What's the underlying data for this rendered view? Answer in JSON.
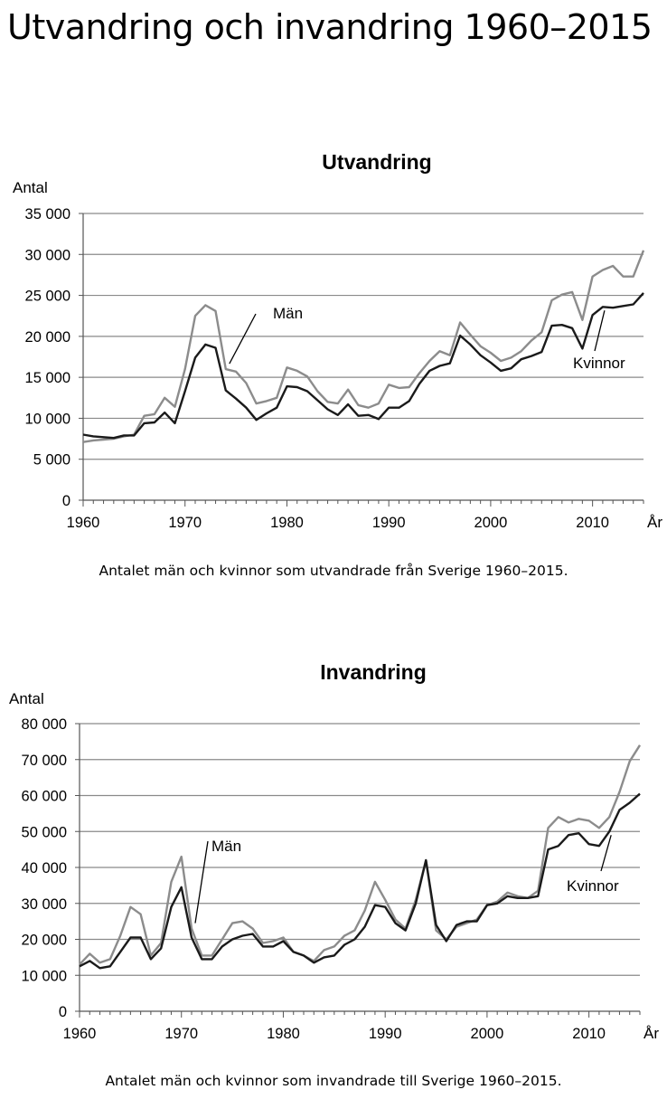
{
  "page": {
    "title": "Utvandring och invandring 1960–2015"
  },
  "colors": {
    "men": "#8c8c8c",
    "women": "#1a1a1a",
    "grid": "#8a8a8a"
  },
  "chart_data": [
    {
      "type": "line",
      "title": "Utvandring",
      "ylabel": "Antal",
      "xlabel": "År",
      "caption": "Antalet män och kvinnor som utvandrade från Sverige 1960–2015.",
      "xlim": [
        1960,
        2015
      ],
      "ylim": [
        0,
        35000
      ],
      "x_ticks": [
        1960,
        1970,
        1980,
        1990,
        2000,
        2010
      ],
      "y_ticks": [
        0,
        5000,
        10000,
        15000,
        20000,
        25000,
        30000,
        35000
      ],
      "y_tick_labels": [
        "0",
        "5 000",
        "10 000",
        "15 000",
        "20 000",
        "25 000",
        "30 000",
        "35 000"
      ],
      "x": [
        1960,
        1961,
        1962,
        1963,
        1964,
        1965,
        1966,
        1967,
        1968,
        1969,
        1970,
        1971,
        1972,
        1973,
        1974,
        1975,
        1976,
        1977,
        1978,
        1979,
        1980,
        1981,
        1982,
        1983,
        1984,
        1985,
        1986,
        1987,
        1988,
        1989,
        1990,
        1991,
        1992,
        1993,
        1994,
        1995,
        1996,
        1997,
        1998,
        1999,
        2000,
        2001,
        2002,
        2003,
        2004,
        2005,
        2006,
        2007,
        2008,
        2009,
        2010,
        2011,
        2012,
        2013,
        2014,
        2015
      ],
      "series": [
        {
          "name": "Män",
          "label": "Män",
          "color": "#8c8c8c",
          "values": [
            7100,
            7300,
            7400,
            7500,
            7800,
            8000,
            10300,
            10500,
            12500,
            11400,
            16000,
            22500,
            23800,
            23100,
            16000,
            15700,
            14300,
            11800,
            12100,
            12500,
            16200,
            15800,
            15100,
            13300,
            12000,
            11800,
            13500,
            11600,
            11300,
            11800,
            14100,
            13700,
            13800,
            15500,
            17000,
            18200,
            17700,
            21700,
            20200,
            18800,
            18000,
            17000,
            17400,
            18200,
            19500,
            20500,
            24400,
            25100,
            25400,
            22000,
            27300,
            28100,
            28600,
            27300,
            27300,
            30500
          ]
        },
        {
          "name": "Kvinnor",
          "label": "Kvinnor",
          "color": "#1a1a1a",
          "values": [
            8000,
            7800,
            7700,
            7600,
            7900,
            7900,
            9400,
            9500,
            10700,
            9400,
            13300,
            17400,
            19000,
            18600,
            13400,
            12400,
            11300,
            9800,
            10600,
            11300,
            13900,
            13800,
            13300,
            12200,
            11100,
            10400,
            11700,
            10300,
            10400,
            9900,
            11300,
            11300,
            12100,
            14200,
            15800,
            16400,
            16700,
            20100,
            19000,
            17700,
            16800,
            15800,
            16100,
            17200,
            17600,
            18100,
            21300,
            21400,
            21000,
            18500,
            22600,
            23600,
            23500,
            23700,
            23900,
            25300
          ]
        }
      ]
    },
    {
      "type": "line",
      "title": "Invandring",
      "ylabel": "Antal",
      "xlabel": "År",
      "caption": "Antalet män och kvinnor som invandrade till Sverige 1960–2015.",
      "xlim": [
        1960,
        2015
      ],
      "ylim": [
        0,
        80000
      ],
      "x_ticks": [
        1960,
        1970,
        1980,
        1990,
        2000,
        2010
      ],
      "y_ticks": [
        0,
        10000,
        20000,
        30000,
        40000,
        50000,
        60000,
        70000,
        80000
      ],
      "y_tick_labels": [
        "0",
        "10 000",
        "20 000",
        "30 000",
        "40 000",
        "50 000",
        "60 000",
        "70 000",
        "80 000"
      ],
      "x": [
        1960,
        1961,
        1962,
        1963,
        1964,
        1965,
        1966,
        1967,
        1968,
        1969,
        1970,
        1971,
        1972,
        1973,
        1974,
        1975,
        1976,
        1977,
        1978,
        1979,
        1980,
        1981,
        1982,
        1983,
        1984,
        1985,
        1986,
        1987,
        1988,
        1989,
        1990,
        1991,
        1992,
        1993,
        1994,
        1995,
        1996,
        1997,
        1998,
        1999,
        2000,
        2001,
        2002,
        2003,
        2004,
        2005,
        2006,
        2007,
        2008,
        2009,
        2010,
        2011,
        2012,
        2013,
        2014,
        2015
      ],
      "series": [
        {
          "name": "Män",
          "label": "Män",
          "color": "#8c8c8c",
          "values": [
            13000,
            16000,
            13500,
            14500,
            21000,
            29000,
            27000,
            15500,
            19000,
            36000,
            43000,
            23000,
            15500,
            15500,
            20000,
            24500,
            25000,
            23000,
            19000,
            19500,
            20500,
            16500,
            15500,
            14000,
            17000,
            18000,
            21000,
            22500,
            28000,
            36000,
            31000,
            25500,
            23000,
            31000,
            42000,
            22500,
            20000,
            23500,
            24500,
            25500,
            29500,
            30500,
            33000,
            32000,
            31500,
            33500,
            51000,
            54000,
            52500,
            53500,
            53000,
            51000,
            54000,
            61000,
            69500,
            74000
          ]
        },
        {
          "name": "Kvinnor",
          "label": "Kvinnor",
          "color": "#1a1a1a",
          "values": [
            12500,
            14000,
            12000,
            12500,
            16500,
            20500,
            20500,
            14500,
            17500,
            29000,
            34500,
            20500,
            14500,
            14500,
            18000,
            20000,
            21000,
            21500,
            18000,
            18000,
            19500,
            16500,
            15500,
            13500,
            15000,
            15500,
            18500,
            20000,
            23500,
            29500,
            29000,
            24500,
            22500,
            30000,
            42000,
            24000,
            19500,
            24000,
            25000,
            25000,
            29500,
            30000,
            32000,
            31500,
            31500,
            32000,
            45000,
            46000,
            49000,
            49500,
            46500,
            46000,
            50000,
            56000,
            58000,
            60500
          ]
        }
      ]
    }
  ]
}
